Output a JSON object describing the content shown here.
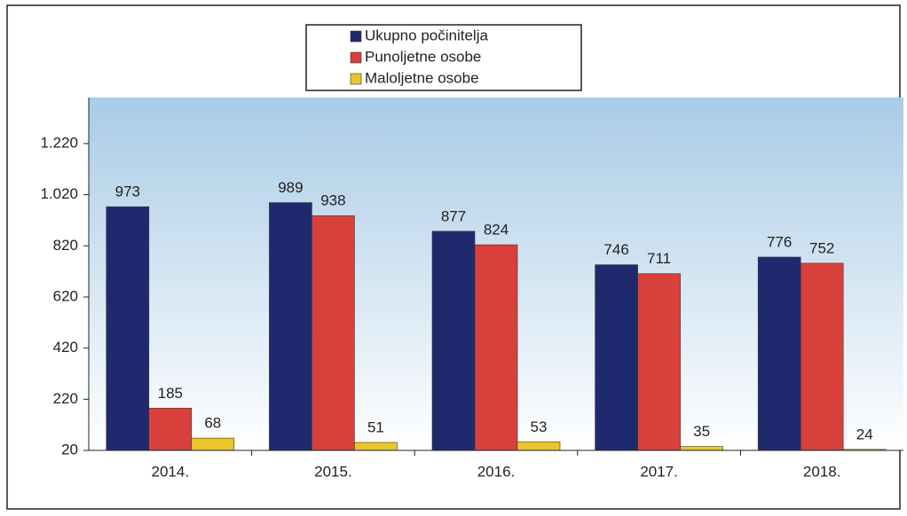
{
  "chart_data": {
    "type": "bar",
    "categories": [
      "2014.",
      "2015.",
      "2016.",
      "2017.",
      "2018."
    ],
    "series": [
      {
        "name": "Ukupno počinitelja",
        "color": "#1f2a6e",
        "values": [
          973,
          989,
          877,
          746,
          776
        ]
      },
      {
        "name": "Punoljetne osobe",
        "color": "#d8413b",
        "values": [
          185,
          938,
          824,
          711,
          752
        ]
      },
      {
        "name": "Maloljetne osobe",
        "color": "#e9c72c",
        "values": [
          68,
          51,
          53,
          35,
          24
        ]
      }
    ],
    "ylim": [
      20,
      1400
    ],
    "yticks": [
      20,
      220,
      420,
      620,
      820,
      {
        "value": 1020,
        "label": "1.020"
      },
      {
        "value": 1220,
        "label": "1.220"
      }
    ],
    "legend": "top"
  }
}
